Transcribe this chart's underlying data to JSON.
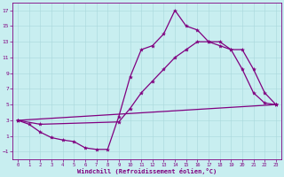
{
  "xlabel": "Windchill (Refroidissement éolien,°C)",
  "bg_color": "#c8eef0",
  "line_color": "#800080",
  "xlim": [
    -0.5,
    23.5
  ],
  "ylim": [
    -2,
    18
  ],
  "xticks": [
    0,
    1,
    2,
    3,
    4,
    5,
    6,
    7,
    8,
    9,
    10,
    11,
    12,
    13,
    14,
    15,
    16,
    17,
    18,
    19,
    20,
    21,
    22,
    23
  ],
  "yticks": [
    -1,
    1,
    3,
    5,
    7,
    9,
    11,
    13,
    15,
    17
  ],
  "line1_x": [
    0,
    1,
    2,
    3,
    4,
    5,
    6,
    7,
    8,
    9,
    10,
    11,
    12,
    13,
    14,
    15,
    16,
    17,
    18,
    19,
    20,
    21,
    22,
    23
  ],
  "line1_y": [
    3,
    2.5,
    1.5,
    0.8,
    0.5,
    0.3,
    -0.5,
    -0.7,
    -0.7,
    3.5,
    8.5,
    12,
    12.5,
    14,
    17,
    15,
    14.5,
    13,
    13,
    12,
    9.5,
    6.5,
    5.2,
    5
  ],
  "line2_x": [
    0,
    2,
    9,
    10,
    11,
    12,
    13,
    14,
    15,
    16,
    17,
    18,
    19,
    20,
    21,
    22,
    23
  ],
  "line2_y": [
    3,
    2.5,
    2.8,
    4.5,
    6.5,
    8.0,
    9.5,
    11.0,
    12.0,
    13.0,
    13.0,
    12.5,
    12.0,
    12.0,
    9.5,
    6.5,
    5
  ],
  "line3_x": [
    0,
    23
  ],
  "line3_y": [
    3,
    5
  ],
  "markersize": 3,
  "linewidth": 0.9
}
